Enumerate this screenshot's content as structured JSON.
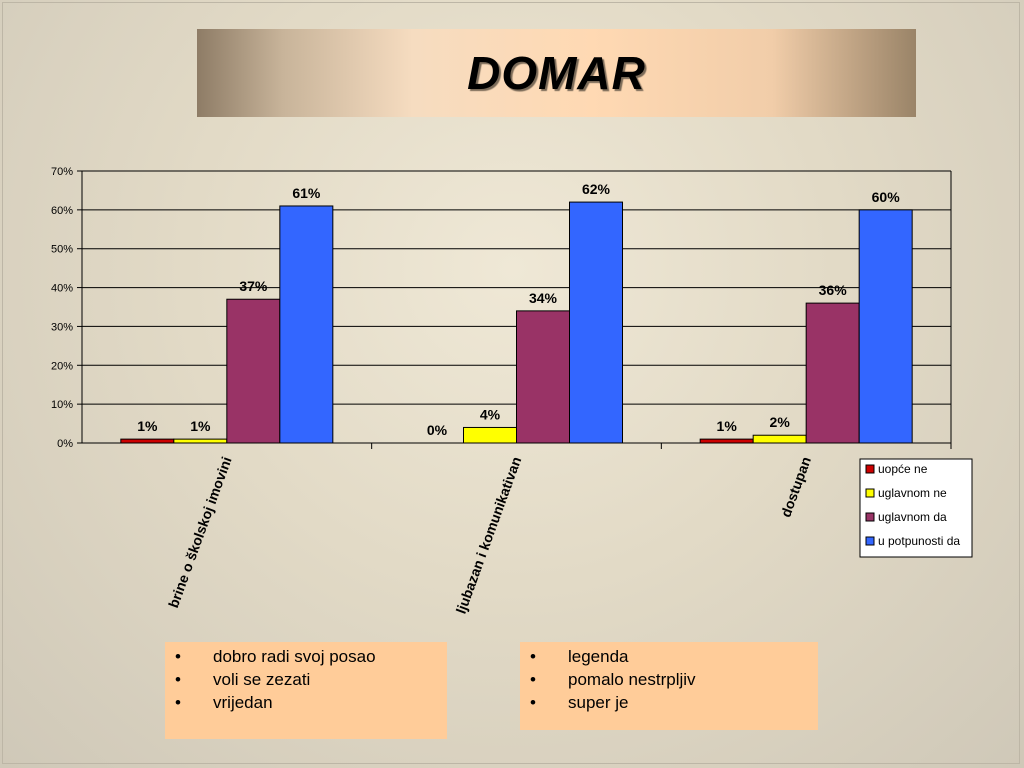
{
  "title": "DOMAR",
  "notes_left": [
    "dobro radi svoj posao",
    "voli se zezati",
    "vrijedan"
  ],
  "notes_right": [
    "legenda",
    "pomalo nestrpljiv",
    "super je"
  ],
  "colors": {
    "uopce_ne": "#cc0000",
    "uglavnom_ne": "#ffff00",
    "uglavnom_da": "#993366",
    "u_potpunosti_da": "#3366ff"
  },
  "chart_data": {
    "type": "bar",
    "categories": [
      "brine o školskoj imovini",
      "ljubazan i komunikativan",
      "dostupan"
    ],
    "series": [
      {
        "name": "uopće ne",
        "color": "#cc0000",
        "values": [
          1,
          0,
          1
        ],
        "labels": [
          "1%",
          "0%",
          "1%"
        ]
      },
      {
        "name": "uglavnom ne",
        "color": "#ffff00",
        "values": [
          1,
          4,
          2
        ],
        "labels": [
          "1%",
          "4%",
          "2%"
        ]
      },
      {
        "name": "uglavnom da",
        "color": "#993366",
        "values": [
          37,
          34,
          36
        ],
        "labels": [
          "37%",
          "34%",
          "36%"
        ]
      },
      {
        "name": "u potpunosti da",
        "color": "#3366ff",
        "values": [
          61,
          62,
          60
        ],
        "labels": [
          "61%",
          "62%",
          "60%"
        ]
      }
    ],
    "ylim": [
      0,
      70
    ],
    "yticks": [
      "0%",
      "10%",
      "20%",
      "30%",
      "40%",
      "50%",
      "60%",
      "70%"
    ],
    "grid": true,
    "legend": "bottom-right"
  }
}
